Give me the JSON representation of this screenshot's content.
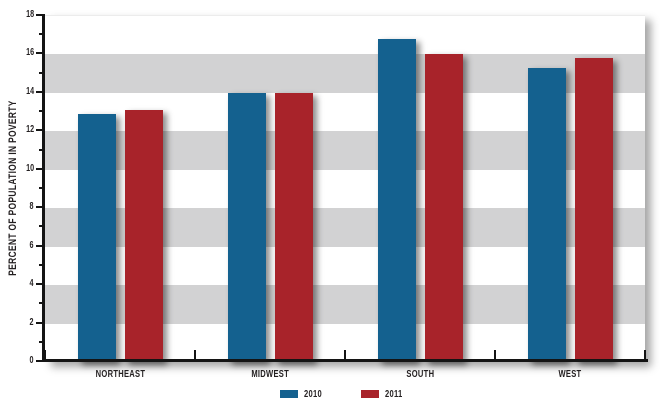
{
  "chart_data": {
    "type": "bar",
    "title": "",
    "ylabel": "PERCENT OF POPULATION IN POVERTY",
    "xlabel": "",
    "categories": [
      "NORTHEAST",
      "MIDWEST",
      "SOUTH",
      "WEST"
    ],
    "series": [
      {
        "name": "2010",
        "color": "#14618f",
        "values": [
          12.9,
          14.0,
          16.8,
          15.3
        ]
      },
      {
        "name": "2011",
        "color": "#a8232a",
        "values": [
          13.1,
          14.0,
          16.0,
          15.8
        ]
      }
    ],
    "ylim": [
      0,
      18
    ],
    "ytick_step": 2,
    "yticks": [
      0,
      2,
      4,
      6,
      8,
      10,
      12,
      14,
      16,
      18
    ],
    "minor_tick_step": 1,
    "grid": "alternating-horizontal-bands",
    "band_colors": {
      "white": "#ffffff",
      "gray": "#d2d2d3"
    },
    "axis_color": "#141414",
    "text_color": "#231f20",
    "legend_position": "bottom-center",
    "legend_labels": [
      "2010",
      "2011"
    ]
  }
}
